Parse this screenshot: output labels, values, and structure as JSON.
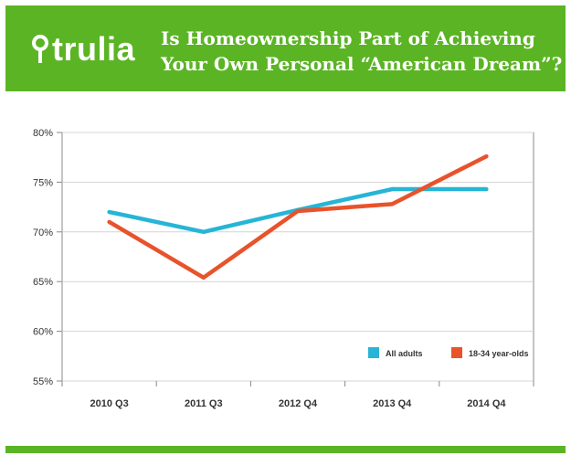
{
  "header": {
    "logo_text": "trulia",
    "title_line1": "Is Homeownership Part of Achieving",
    "title_line2": "Your Own Personal “American Dream”?"
  },
  "colors": {
    "brand_green": "#5bb424",
    "all_adults": "#26b5d6",
    "young_adults": "#e8532b"
  },
  "chart_data": {
    "type": "line",
    "categories": [
      "2010 Q3",
      "2011 Q3",
      "2012 Q4",
      "2013 Q4",
      "2014 Q4"
    ],
    "x_tick_labels": [
      "2010 Q3",
      "2011 Q3",
      "2012 Q4",
      "2013 Q4",
      "2014 Q4"
    ],
    "y_tick_labels": [
      "55%",
      "60%",
      "65%",
      "70%",
      "75%",
      "80%"
    ],
    "y_ticks": [
      55,
      60,
      65,
      70,
      75,
      80
    ],
    "ylim": [
      55,
      80
    ],
    "grid": true,
    "legend_position": "bottom-right",
    "series": [
      {
        "name": "All adults",
        "values": [
          72.0,
          70.0,
          72.2,
          74.3,
          74.3
        ],
        "color": "#26b5d6"
      },
      {
        "name": "18-34 year-olds",
        "values": [
          71.0,
          65.4,
          72.1,
          72.8,
          77.6
        ],
        "color": "#e8532b"
      }
    ]
  }
}
